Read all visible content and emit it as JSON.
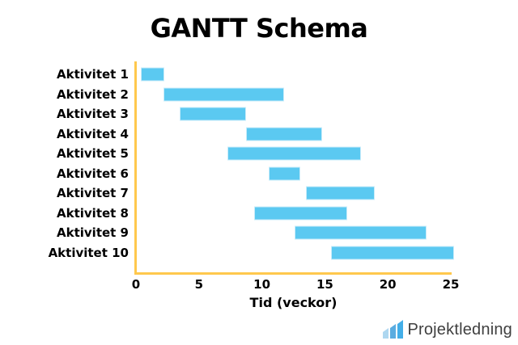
{
  "chart_data": {
    "type": "bar",
    "subtype": "gantt-horizontal",
    "title": "GANTT Schema",
    "xlabel": "Tid (veckor)",
    "ylabel": "",
    "xlim": [
      0,
      25
    ],
    "xticks": [
      0,
      5,
      10,
      15,
      20,
      25
    ],
    "grid": false,
    "legend_position": "none",
    "categories": [
      "Aktivitet 1",
      "Aktivitet 2",
      "Aktivitet 3",
      "Aktivitet 4",
      "Aktivitet 5",
      "Aktivitet 6",
      "Aktivitet 7",
      "Aktivitet 8",
      "Aktivitet 9",
      "Aktivitet 10"
    ],
    "bars": [
      {
        "label": "Aktivitet 1",
        "start": 0.3,
        "end": 2.2
      },
      {
        "label": "Aktivitet 2",
        "start": 2.1,
        "end": 11.7
      },
      {
        "label": "Aktivitet 3",
        "start": 3.4,
        "end": 8.7
      },
      {
        "label": "Aktivitet 4",
        "start": 8.7,
        "end": 14.7
      },
      {
        "label": "Aktivitet 5",
        "start": 7.2,
        "end": 17.8
      },
      {
        "label": "Aktivitet 6",
        "start": 10.5,
        "end": 13.0
      },
      {
        "label": "Aktivitet 7",
        "start": 13.4,
        "end": 18.9
      },
      {
        "label": "Aktivitet 8",
        "start": 9.3,
        "end": 16.7
      },
      {
        "label": "Aktivitet 9",
        "start": 12.5,
        "end": 23.0
      },
      {
        "label": "Aktivitet 10",
        "start": 15.4,
        "end": 25.2
      }
    ]
  },
  "colors": {
    "bar": "#5bc9f1",
    "bar_border": "#c9ecfa",
    "axis": "#ffc84d",
    "title_text": "#000000",
    "logo_text": "#3f3f3f",
    "logo_icon": [
      "#aed7f0",
      "#5aace0",
      "#43aee8"
    ]
  },
  "footer": {
    "brand": "Projektledning"
  }
}
